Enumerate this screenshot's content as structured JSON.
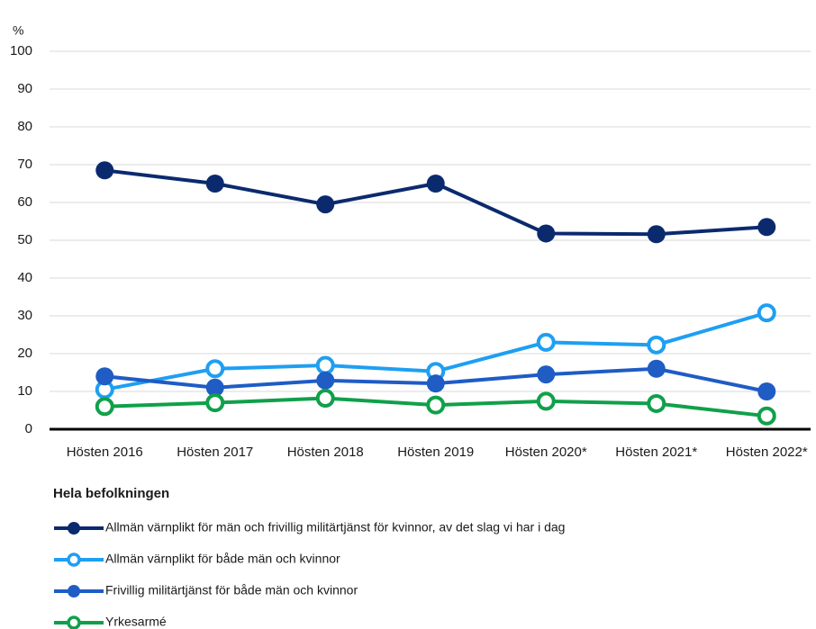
{
  "chart_data": {
    "type": "line",
    "y_label": "%",
    "categories": [
      "Hösten 2016",
      "Hösten 2017",
      "Hösten 2018",
      "Hösten 2019",
      "Hösten 2020*",
      "Hösten 2021*",
      "Hösten 2022*"
    ],
    "ylim": [
      0,
      100
    ],
    "yticks": [
      0,
      10,
      20,
      30,
      40,
      50,
      60,
      70,
      80,
      90,
      100
    ],
    "grid": true,
    "legend_title": "Hela befolkningen",
    "legend_position": "bottom",
    "series": [
      {
        "name": "Allmän värnplikt för män och frivillig militärtjänst för kvinnor, av det slag vi har i dag",
        "color": "#0b2a6e",
        "marker": "filled",
        "values": [
          68.5,
          65,
          59.5,
          65,
          51.8,
          51.6,
          53.5
        ]
      },
      {
        "name": "Allmän värnplikt för både män och kvinnor",
        "color": "#1e9ff2",
        "marker": "open",
        "values": [
          10.5,
          16,
          16.9,
          15.3,
          23,
          22.3,
          30.8
        ]
      },
      {
        "name": "Frivillig militärtjänst för både män och kvinnor",
        "color": "#1f5cc4",
        "marker": "filled",
        "values": [
          14,
          11,
          12.9,
          12.1,
          14.5,
          16,
          10
        ]
      },
      {
        "name": "Yrkesarmé",
        "color": "#10a04a",
        "marker": "open",
        "values": [
          6,
          7,
          8.2,
          6.4,
          7.4,
          6.8,
          3.5
        ]
      }
    ]
  }
}
